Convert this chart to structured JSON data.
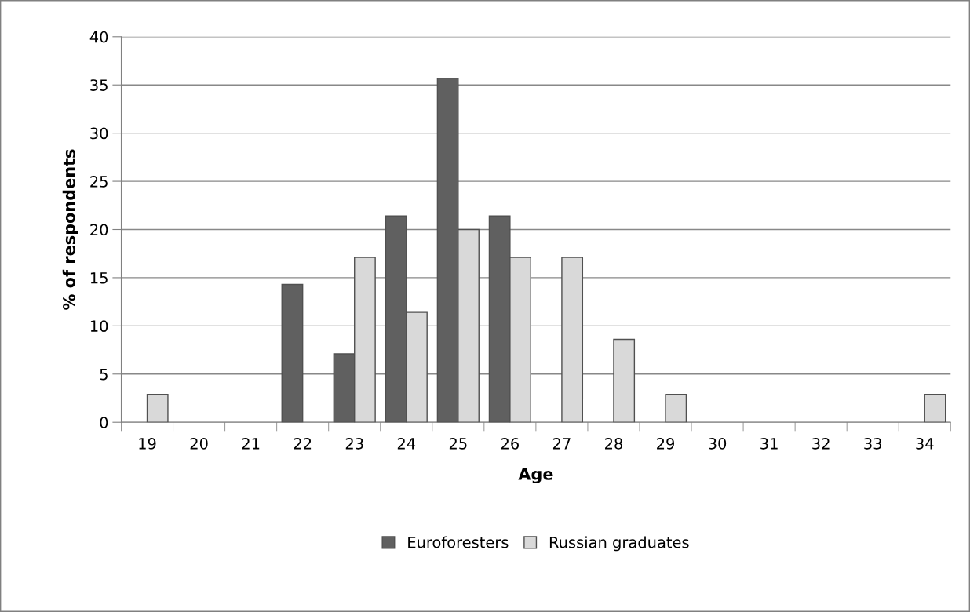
{
  "chart_data": {
    "type": "bar",
    "xlabel": "Age",
    "ylabel": "% of respondents",
    "categories": [
      "19",
      "20",
      "21",
      "22",
      "23",
      "24",
      "25",
      "26",
      "27",
      "28",
      "29",
      "30",
      "31",
      "32",
      "33",
      "34"
    ],
    "series": [
      {
        "name": "Euroforesters",
        "color": "#606060",
        "values": [
          0,
          0,
          0,
          14.3,
          7.1,
          21.4,
          35.7,
          21.4,
          0,
          0,
          0,
          0,
          0,
          0,
          0,
          0
        ]
      },
      {
        "name": "Russian graduates",
        "color": "#d9d9d9",
        "values": [
          2.9,
          0,
          0,
          0,
          17.1,
          11.4,
          20.0,
          17.1,
          17.1,
          8.6,
          2.9,
          0,
          0,
          0,
          0,
          2.9
        ]
      }
    ],
    "ylim": [
      0,
      40
    ],
    "yticks": [
      0,
      5,
      10,
      15,
      20,
      25,
      30,
      35,
      40
    ],
    "grid": "y",
    "legend": "bottom"
  }
}
